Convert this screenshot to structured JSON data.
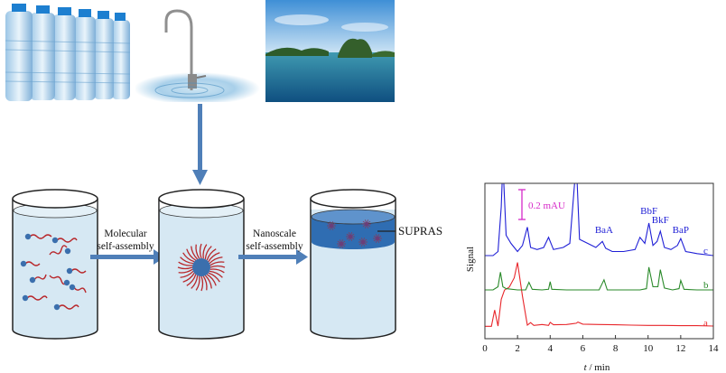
{
  "photos": {
    "bottled_water": "bottled-water-photo",
    "tap_water": "tap-water-photo",
    "sea_water": "sea-water-photo"
  },
  "arrows": {
    "step1_line1": "Molecular",
    "step1_line2": "self-assembly",
    "step2_line1": "Nanoscale",
    "step2_line2": "self-assembly"
  },
  "supras_label": "SUPRAS",
  "colors": {
    "trace_a": "#e8262b",
    "trace_b": "#2a8a2a",
    "trace_c": "#1f1fd6",
    "scalebar": "#d629c8",
    "arrow_fill": "#4f7fb8",
    "liquid": "#d6e8f3",
    "supras_phase": "#2f6db2"
  },
  "chart_data": {
    "type": "line",
    "xlabel_var": "t",
    "xlabel_unit": " / min",
    "ylabel": "Signal",
    "xlim": [
      0,
      14
    ],
    "xticks": [
      0,
      2,
      4,
      6,
      8,
      10,
      12,
      14
    ],
    "scalebar_label": "0.2 mAU",
    "series": [
      {
        "name": "a",
        "x": [
          0,
          0.4,
          0.6,
          0.8,
          1.0,
          1.2,
          1.5,
          1.8,
          2.0,
          2.3,
          2.6,
          2.8,
          3.0,
          3.5,
          3.9,
          4.0,
          4.2,
          5,
          5.6,
          5.7,
          6,
          7,
          8,
          9,
          10,
          11,
          12,
          13,
          14
        ],
        "y": [
          0.02,
          0.02,
          0.55,
          0.03,
          0.9,
          1.2,
          1.3,
          1.6,
          2.1,
          1.0,
          0.06,
          0.14,
          0.05,
          0.08,
          0.05,
          0.15,
          0.07,
          0.08,
          0.12,
          0.16,
          0.09,
          0.08,
          0.07,
          0.06,
          0.05,
          0.05,
          0.04,
          0.04,
          0.03
        ]
      },
      {
        "name": "b",
        "x": [
          0,
          0.5,
          0.8,
          0.95,
          1.1,
          1.3,
          2,
          2.5,
          2.7,
          2.9,
          3.5,
          3.9,
          4.0,
          4.1,
          5,
          6,
          7,
          7.3,
          7.5,
          8,
          9.5,
          9.9,
          10.05,
          10.3,
          10.6,
          10.75,
          11,
          11.5,
          11.9,
          12.0,
          12.2,
          13,
          14
        ],
        "y": [
          0.0,
          0.0,
          0.05,
          0.28,
          0.05,
          0.02,
          0.0,
          0.0,
          0.12,
          0.01,
          0.0,
          0.01,
          0.13,
          0.01,
          0.0,
          0.0,
          0.0,
          0.16,
          0.0,
          0.0,
          0.0,
          0.02,
          0.36,
          0.05,
          0.05,
          0.32,
          0.03,
          0.0,
          0.02,
          0.15,
          0.01,
          0.0,
          0.0
        ]
      },
      {
        "name": "c",
        "x": [
          0,
          0.5,
          0.8,
          1.0,
          1.1,
          1.3,
          1.6,
          2.0,
          2.3,
          2.6,
          2.8,
          3.2,
          3.6,
          3.9,
          4.2,
          4.8,
          5.2,
          5.5,
          5.6,
          5.8,
          6.3,
          6.8,
          7.2,
          7.4,
          7.8,
          8.5,
          9.2,
          9.5,
          9.8,
          10.05,
          10.3,
          10.55,
          10.75,
          11.0,
          11.4,
          11.8,
          12.0,
          12.3,
          13,
          14
        ],
        "y": [
          0.0,
          0.0,
          0.1,
          1.2,
          2.3,
          0.5,
          0.3,
          0.1,
          0.25,
          0.7,
          0.2,
          0.15,
          0.2,
          0.45,
          0.15,
          0.2,
          0.3,
          1.8,
          2.3,
          0.4,
          0.3,
          0.2,
          0.35,
          0.18,
          0.1,
          0.1,
          0.15,
          0.45,
          0.3,
          0.8,
          0.25,
          0.35,
          0.6,
          0.2,
          0.15,
          0.25,
          0.42,
          0.1,
          0.05,
          0.0
        ]
      }
    ],
    "peak_labels": [
      {
        "text": "BaA",
        "x": 7.3
      },
      {
        "text": "BbF",
        "x": 10.05
      },
      {
        "text": "BkF",
        "x": 10.75
      },
      {
        "text": "BaP",
        "x": 12.0
      }
    ]
  }
}
